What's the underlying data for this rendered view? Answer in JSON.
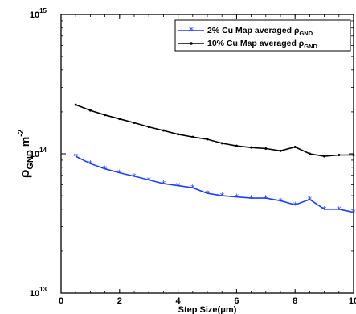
{
  "chart_data": {
    "type": "line",
    "title": "",
    "xlabel": "Step Size(μm)",
    "ylabel_main": "ρ",
    "ylabel_sub": "GND",
    "ylabel_unit": "m",
    "ylabel_exp": "-2",
    "xlim": [
      0,
      10
    ],
    "ylim": [
      10000000000000.0,
      1000000000000000.0
    ],
    "yscale": "log",
    "grid": false,
    "legend_position": "top-right",
    "x_ticks": [
      0,
      2,
      4,
      6,
      8,
      10
    ],
    "x_tick_labels": [
      "0",
      "2",
      "4",
      "6",
      "8",
      "10"
    ],
    "y_ticks": [
      10000000000000.0,
      100000000000000.0,
      1000000000000000.0
    ],
    "y_tick_labels": [
      {
        "base": "10",
        "exp": "13"
      },
      {
        "base": "10",
        "exp": "14"
      },
      {
        "base": "10",
        "exp": "15"
      }
    ],
    "x": [
      0.5,
      1.0,
      1.5,
      2.0,
      2.5,
      3.0,
      3.5,
      4.0,
      4.5,
      5.0,
      5.5,
      6.0,
      6.5,
      7.0,
      7.5,
      8.0,
      8.5,
      9.0,
      9.5,
      10.0
    ],
    "series": [
      {
        "name_main": "2% Cu Map averaged ρ",
        "name_sub": "GND",
        "color": "#1f3fff",
        "marker": "star",
        "values": [
          96000000000000.0,
          85000000000000.0,
          78000000000000.0,
          73000000000000.0,
          69000000000000.0,
          65000000000000.0,
          61000000000000.0,
          59000000000000.0,
          57000000000000.0,
          52000000000000.0,
          50000000000000.0,
          49000000000000.0,
          48000000000000.0,
          48000000000000.0,
          46000000000000.0,
          43000000000000.0,
          47000000000000.0,
          40000000000000.0,
          40000000000000.0,
          38000000000000.0
        ]
      },
      {
        "name_main": "10% Cu Map averaged ρ",
        "name_sub": "GND",
        "color": "#000000",
        "marker": "dot",
        "values": [
          225000000000000.0,
          205000000000000.0,
          190000000000000.0,
          178000000000000.0,
          167000000000000.0,
          156000000000000.0,
          147000000000000.0,
          138000000000000.0,
          132000000000000.0,
          127000000000000.0,
          119000000000000.0,
          114000000000000.0,
          111000000000000.0,
          109000000000000.0,
          105000000000000.0,
          112000000000000.0,
          100000000000000.0,
          96000000000000.0,
          98000000000000.0,
          98000000000000.0
        ]
      }
    ]
  }
}
